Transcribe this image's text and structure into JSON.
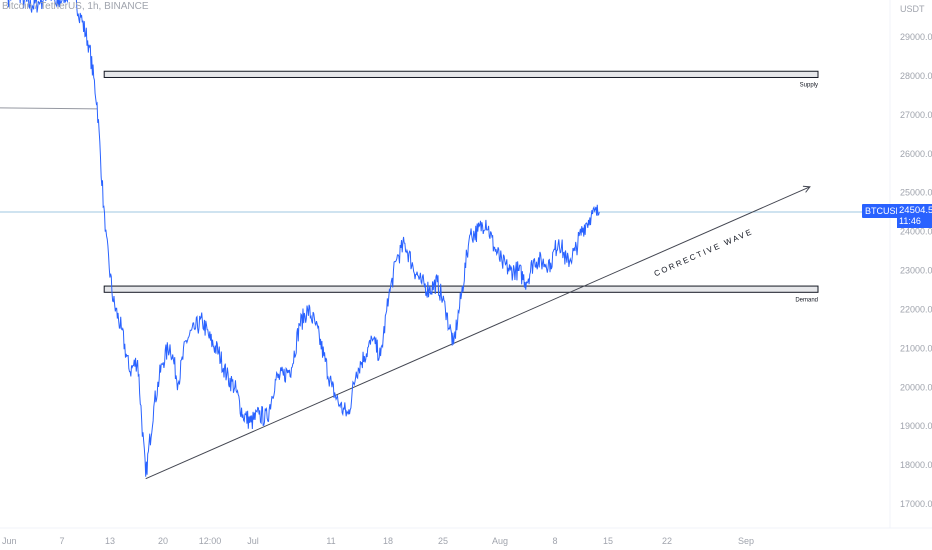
{
  "header": {
    "symbol_title": "Bitcoin / TetherUS, 1h, BINANCE"
  },
  "price_badge": {
    "symbol": "BTCUSDT",
    "price": "24504.57",
    "timer": "11:46"
  },
  "colors": {
    "series": "#2962ff",
    "price_line": "#9fc7e0",
    "zone_fill": "#e6e7ea",
    "zone_stroke": "#131722",
    "trendline": "#434651",
    "axis_text": "#a0a4ad",
    "badge": "#2962ff"
  },
  "chart_data": {
    "type": "line",
    "title": "Bitcoin / TetherUS, 1h, BINANCE",
    "yaxis_unit": "USDT",
    "ylim": [
      16600,
      30300
    ],
    "y_ticks": [
      {
        "label": "29000.00",
        "value": 29000
      },
      {
        "label": "28000.00",
        "value": 28000
      },
      {
        "label": "27000.00",
        "value": 27000
      },
      {
        "label": "26000.00",
        "value": 26000
      },
      {
        "label": "25000.00",
        "value": 25000
      },
      {
        "label": "24000.00",
        "value": 24000
      },
      {
        "label": "23000.00",
        "value": 23000
      },
      {
        "label": "22000.00",
        "value": 22000
      },
      {
        "label": "21000.00",
        "value": 21000
      },
      {
        "label": "20000.00",
        "value": 20000
      },
      {
        "label": "19000.00",
        "value": 19000
      },
      {
        "label": "18000.00",
        "value": 18000
      },
      {
        "label": "17000.00",
        "value": 17000
      }
    ],
    "x_ticks": [
      "Jun",
      "7",
      "13",
      "20",
      "12:00",
      "Jul",
      "11",
      "18",
      "25",
      "Aug",
      "8",
      "15",
      "22",
      "Sep"
    ],
    "last_price": 24504.57,
    "series": [
      {
        "points": [
          [
            "2022-06-01",
            30000
          ],
          [
            "2022-06-02",
            30300
          ],
          [
            "2022-06-03",
            29900
          ],
          [
            "2022-06-04",
            29800
          ],
          [
            "2022-06-05",
            29900
          ],
          [
            "2022-06-06",
            30200
          ],
          [
            "2022-06-07",
            29800
          ],
          [
            "2022-06-08",
            30100
          ],
          [
            "2022-06-09",
            30200
          ],
          [
            "2022-06-10",
            29500
          ],
          [
            "2022-06-11",
            28800
          ],
          [
            "2022-06-12",
            27300
          ],
          [
            "2022-06-13",
            24000
          ],
          [
            "2022-06-14",
            22200
          ],
          [
            "2022-06-15",
            21500
          ],
          [
            "2022-06-16",
            20400
          ],
          [
            "2022-06-17",
            20700
          ],
          [
            "2022-06-18",
            17700
          ],
          [
            "2022-06-19",
            19500
          ],
          [
            "2022-06-20",
            20600
          ],
          [
            "2022-06-21",
            21100
          ],
          [
            "2022-06-22",
            20100
          ],
          [
            "2022-06-23",
            21200
          ],
          [
            "2022-06-24",
            21500
          ],
          [
            "2022-06-25",
            21700
          ],
          [
            "2022-06-26",
            21200
          ],
          [
            "2022-06-27",
            20900
          ],
          [
            "2022-06-28",
            20300
          ],
          [
            "2022-06-29",
            20000
          ],
          [
            "2022-06-30",
            19300
          ],
          [
            "2022-07-01",
            19100
          ],
          [
            "2022-07-02",
            19300
          ],
          [
            "2022-07-03",
            19200
          ],
          [
            "2022-07-04",
            20200
          ],
          [
            "2022-07-05",
            20300
          ],
          [
            "2022-07-06",
            20500
          ],
          [
            "2022-07-07",
            21600
          ],
          [
            "2022-07-08",
            22000
          ],
          [
            "2022-07-09",
            21600
          ],
          [
            "2022-07-10",
            20800
          ],
          [
            "2022-07-11",
            20000
          ],
          [
            "2022-07-12",
            19500
          ],
          [
            "2022-07-13",
            19300
          ],
          [
            "2022-07-14",
            20400
          ],
          [
            "2022-07-15",
            20800
          ],
          [
            "2022-07-16",
            21200
          ],
          [
            "2022-07-17",
            20800
          ],
          [
            "2022-07-18",
            22300
          ],
          [
            "2022-07-19",
            23300
          ],
          [
            "2022-07-20",
            23700
          ],
          [
            "2022-07-21",
            23100
          ],
          [
            "2022-07-22",
            22700
          ],
          [
            "2022-07-23",
            22500
          ],
          [
            "2022-07-24",
            22700
          ],
          [
            "2022-07-25",
            22000
          ],
          [
            "2022-07-26",
            21100
          ],
          [
            "2022-07-27",
            22400
          ],
          [
            "2022-07-28",
            23900
          ],
          [
            "2022-07-29",
            24000
          ],
          [
            "2022-07-30",
            24300
          ],
          [
            "2022-07-31",
            23600
          ],
          [
            "2022-08-01",
            23200
          ],
          [
            "2022-08-02",
            23000
          ],
          [
            "2022-08-03",
            23000
          ],
          [
            "2022-08-04",
            22700
          ],
          [
            "2022-08-05",
            23300
          ],
          [
            "2022-08-06",
            23200
          ],
          [
            "2022-08-07",
            23200
          ],
          [
            "2022-08-08",
            23800
          ],
          [
            "2022-08-09",
            23200
          ],
          [
            "2022-08-10",
            23500
          ],
          [
            "2022-08-11",
            24100
          ],
          [
            "2022-08-12",
            24400
          ],
          [
            "2022-08-13",
            24504.57
          ]
        ]
      }
    ],
    "annotations": [
      {
        "type": "zone",
        "label": "Supply",
        "y_top": 28120,
        "y_bottom": 27960,
        "x_start": "2022-06-13",
        "x_end": "2022-09-09"
      },
      {
        "type": "zone",
        "label": "Demand",
        "y_top": 22600,
        "y_bottom": 22440,
        "x_start": "2022-06-13",
        "x_end": "2022-09-09"
      },
      {
        "type": "trendline",
        "label": "CORRECTIVE WAVE",
        "from": [
          "2022-06-18",
          17650
        ],
        "to": [
          "2022-09-08",
          25150
        ]
      },
      {
        "type": "hline",
        "y": 27180,
        "x_start": "2022-06-01",
        "x_end": "2022-06-12"
      }
    ]
  }
}
